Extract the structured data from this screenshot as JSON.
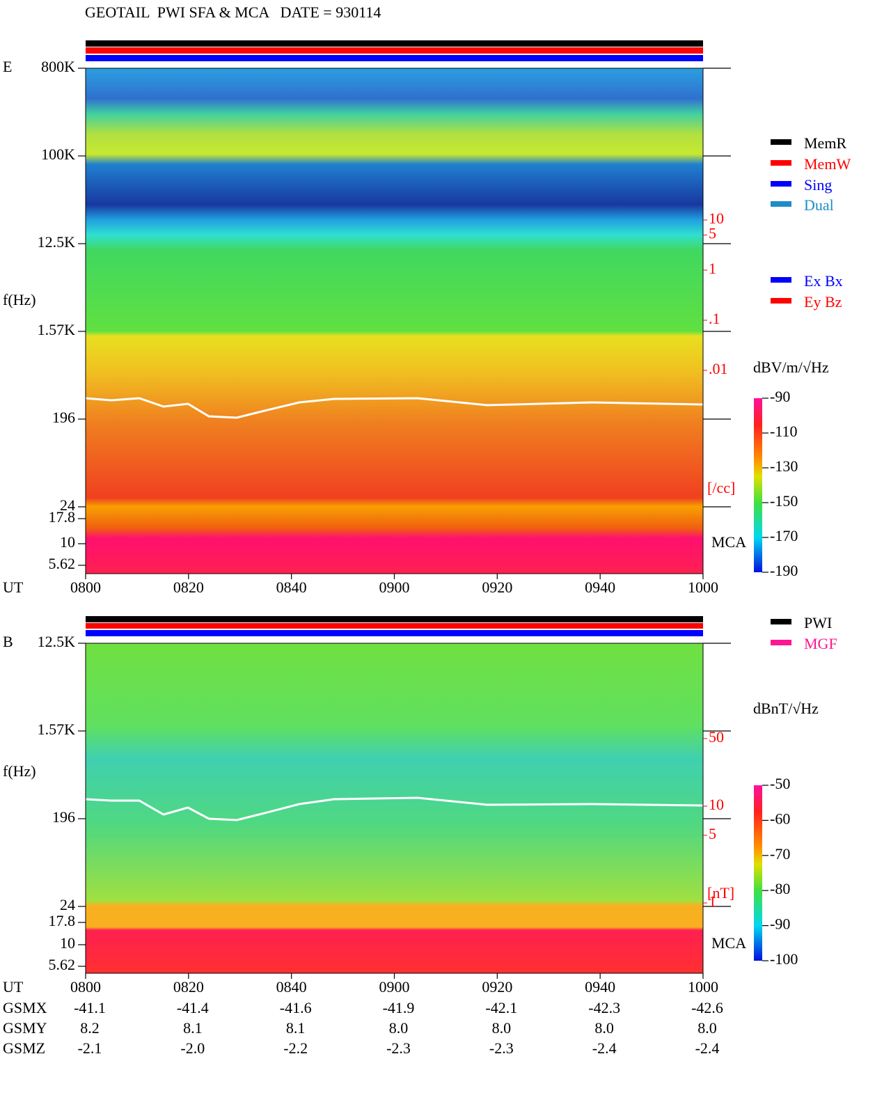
{
  "title": "GEOTAIL  PWI SFA & MCA   DATE = 930114",
  "panels": [
    {
      "label": "E",
      "y_label": "f(Hz)",
      "freq_ticks": [
        "800K",
        "100K",
        "12.5K",
        "1.57K",
        "196",
        "24",
        "17.8",
        "10",
        "5.62"
      ],
      "mca_label": "MCA",
      "time_label": "UT",
      "time_ticks": [
        "0800",
        "0820",
        "0840",
        "0900",
        "0920",
        "0940",
        "1000"
      ],
      "colorbar": {
        "unit": "dBV/m/√Hz",
        "ticks": [
          -90,
          -110,
          -130,
          -150,
          -170,
          -190
        ]
      },
      "right_axis": {
        "ticks": [
          10,
          5,
          1,
          {
            "value": 0.1,
            "label": ".1"
          },
          {
            "value": 0.01,
            "label": ".01"
          }
        ],
        "unit": "[/cc]"
      },
      "legends": [
        [
          {
            "name": "MemR",
            "color": "#000000"
          },
          {
            "name": "MemW",
            "color": "#ff0000"
          },
          {
            "name": "Sing",
            "color": "#0000ff"
          },
          {
            "name": "Dual",
            "color": "#1e8cc8"
          }
        ],
        [
          {
            "name": "Ex Bx",
            "color": "#0000ff"
          },
          {
            "name": "Ey Bz",
            "color": "#ff0000"
          }
        ]
      ]
    },
    {
      "label": "B",
      "y_label": "f(Hz)",
      "freq_ticks": [
        "12.5K",
        "1.57K",
        "196",
        "24",
        "17.8",
        "10",
        "5.62"
      ],
      "mca_label": "MCA",
      "time_label": "UT",
      "time_ticks": [
        "0800",
        "0820",
        "0840",
        "0900",
        "0920",
        "0940",
        "1000"
      ],
      "colorbar": {
        "unit": "dBnT/√Hz",
        "ticks": [
          -50,
          -60,
          -70,
          -80,
          -90,
          -100
        ]
      },
      "right_axis": {
        "ticks": [
          50,
          10,
          5,
          1
        ],
        "unit": "[nT]"
      },
      "legends": [
        [
          {
            "name": "PWI",
            "color": "#000000"
          },
          {
            "name": "MGF",
            "color": "#ff1493"
          }
        ]
      ]
    }
  ],
  "orbit": {
    "rows": [
      {
        "label": "GSMX",
        "values": [
          "-41.1",
          "-41.4",
          "-41.6",
          "-41.9",
          "-42.1",
          "-42.3",
          "-42.6"
        ]
      },
      {
        "label": "GSMY",
        "values": [
          "8.2",
          "8.1",
          "8.1",
          "8.0",
          "8.0",
          "8.0",
          "8.0"
        ]
      },
      {
        "label": "GSMZ",
        "values": [
          "-2.1",
          "-2.0",
          "-2.2",
          "-2.3",
          "-2.3",
          "-2.4",
          "-2.4"
        ]
      }
    ]
  }
}
